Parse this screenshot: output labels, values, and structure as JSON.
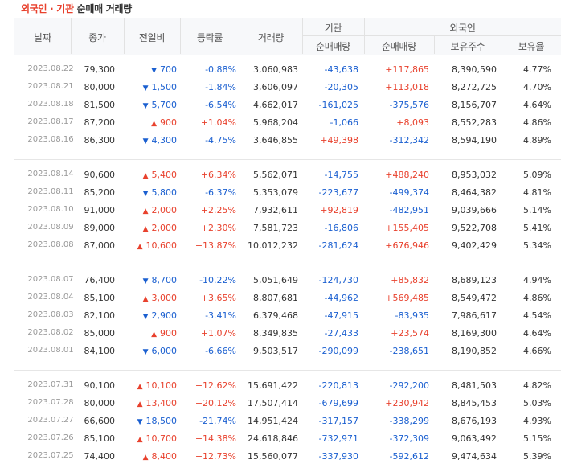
{
  "title": {
    "part1": "외국인 · 기관",
    "part2": "순매매 거래량"
  },
  "headers": {
    "date": "날짜",
    "close": "종가",
    "change": "전일비",
    "rate": "등락률",
    "volume": "거래량",
    "institution": "기관",
    "foreign": "외국인",
    "inst_net": "순매매량",
    "foreign_net": "순매매량",
    "holdings": "보유주수",
    "hold_rate": "보유율"
  },
  "colors": {
    "up": "#e8412d",
    "down": "#1a5fd0"
  },
  "icons": {
    "up": "triangle-up-icon",
    "down": "triangle-down-icon"
  },
  "groups": [
    [
      {
        "date": "2023.08.22",
        "close": "79,300",
        "dir": "down",
        "change": "700",
        "rate": "-0.88%",
        "volume": "3,060,983",
        "inst": "-43,638",
        "forn": "+117,865",
        "hold": "8,390,590",
        "pct": "4.77%"
      },
      {
        "date": "2023.08.21",
        "close": "80,000",
        "dir": "down",
        "change": "1,500",
        "rate": "-1.84%",
        "volume": "3,606,097",
        "inst": "-20,305",
        "forn": "+113,018",
        "hold": "8,272,725",
        "pct": "4.70%"
      },
      {
        "date": "2023.08.18",
        "close": "81,500",
        "dir": "down",
        "change": "5,700",
        "rate": "-6.54%",
        "volume": "4,662,017",
        "inst": "-161,025",
        "forn": "-375,576",
        "hold": "8,156,707",
        "pct": "4.64%"
      },
      {
        "date": "2023.08.17",
        "close": "87,200",
        "dir": "up",
        "change": "900",
        "rate": "+1.04%",
        "volume": "5,968,204",
        "inst": "-1,066",
        "forn": "+8,093",
        "hold": "8,552,283",
        "pct": "4.86%"
      },
      {
        "date": "2023.08.16",
        "close": "86,300",
        "dir": "down",
        "change": "4,300",
        "rate": "-4.75%",
        "volume": "3,646,855",
        "inst": "+49,398",
        "forn": "-312,342",
        "hold": "8,594,190",
        "pct": "4.89%"
      }
    ],
    [
      {
        "date": "2023.08.14",
        "close": "90,600",
        "dir": "up",
        "change": "5,400",
        "rate": "+6.34%",
        "volume": "5,562,071",
        "inst": "-14,755",
        "forn": "+488,240",
        "hold": "8,953,032",
        "pct": "5.09%"
      },
      {
        "date": "2023.08.11",
        "close": "85,200",
        "dir": "down",
        "change": "5,800",
        "rate": "-6.37%",
        "volume": "5,353,079",
        "inst": "-223,677",
        "forn": "-499,374",
        "hold": "8,464,382",
        "pct": "4.81%"
      },
      {
        "date": "2023.08.10",
        "close": "91,000",
        "dir": "up",
        "change": "2,000",
        "rate": "+2.25%",
        "volume": "7,932,611",
        "inst": "+92,819",
        "forn": "-482,951",
        "hold": "9,039,666",
        "pct": "5.14%"
      },
      {
        "date": "2023.08.09",
        "close": "89,000",
        "dir": "up",
        "change": "2,000",
        "rate": "+2.30%",
        "volume": "7,581,723",
        "inst": "-16,806",
        "forn": "+155,405",
        "hold": "9,522,708",
        "pct": "5.41%"
      },
      {
        "date": "2023.08.08",
        "close": "87,000",
        "dir": "up",
        "change": "10,600",
        "rate": "+13.87%",
        "volume": "10,012,232",
        "inst": "-281,624",
        "forn": "+676,946",
        "hold": "9,402,429",
        "pct": "5.34%"
      }
    ],
    [
      {
        "date": "2023.08.07",
        "close": "76,400",
        "dir": "down",
        "change": "8,700",
        "rate": "-10.22%",
        "volume": "5,051,649",
        "inst": "-124,730",
        "forn": "+85,832",
        "hold": "8,689,123",
        "pct": "4.94%"
      },
      {
        "date": "2023.08.04",
        "close": "85,100",
        "dir": "up",
        "change": "3,000",
        "rate": "+3.65%",
        "volume": "8,807,681",
        "inst": "-44,962",
        "forn": "+569,485",
        "hold": "8,549,472",
        "pct": "4.86%"
      },
      {
        "date": "2023.08.03",
        "close": "82,100",
        "dir": "down",
        "change": "2,900",
        "rate": "-3.41%",
        "volume": "6,379,468",
        "inst": "-47,915",
        "forn": "-83,935",
        "hold": "7,986,617",
        "pct": "4.54%"
      },
      {
        "date": "2023.08.02",
        "close": "85,000",
        "dir": "up",
        "change": "900",
        "rate": "+1.07%",
        "volume": "8,349,835",
        "inst": "-27,433",
        "forn": "+23,574",
        "hold": "8,169,300",
        "pct": "4.64%"
      },
      {
        "date": "2023.08.01",
        "close": "84,100",
        "dir": "down",
        "change": "6,000",
        "rate": "-6.66%",
        "volume": "9,503,517",
        "inst": "-290,099",
        "forn": "-238,651",
        "hold": "8,190,852",
        "pct": "4.66%"
      }
    ],
    [
      {
        "date": "2023.07.31",
        "close": "90,100",
        "dir": "up",
        "change": "10,100",
        "rate": "+12.62%",
        "volume": "15,691,422",
        "inst": "-220,813",
        "forn": "-292,200",
        "hold": "8,481,503",
        "pct": "4.82%"
      },
      {
        "date": "2023.07.28",
        "close": "80,000",
        "dir": "up",
        "change": "13,400",
        "rate": "+20.12%",
        "volume": "17,507,414",
        "inst": "-679,699",
        "forn": "+230,942",
        "hold": "8,845,453",
        "pct": "5.03%"
      },
      {
        "date": "2023.07.27",
        "close": "66,600",
        "dir": "down",
        "change": "18,500",
        "rate": "-21.74%",
        "volume": "14,951,424",
        "inst": "-317,157",
        "forn": "-338,299",
        "hold": "8,676,193",
        "pct": "4.93%"
      },
      {
        "date": "2023.07.26",
        "close": "85,100",
        "dir": "up",
        "change": "10,700",
        "rate": "+14.38%",
        "volume": "24,618,846",
        "inst": "-732,971",
        "forn": "-372,309",
        "hold": "9,063,492",
        "pct": "5.15%"
      },
      {
        "date": "2023.07.25",
        "close": "74,400",
        "dir": "up",
        "change": "8,400",
        "rate": "+12.73%",
        "volume": "15,560,077",
        "inst": "-337,930",
        "forn": "-592,612",
        "hold": "9,474,634",
        "pct": "5.39%"
      }
    ]
  ]
}
